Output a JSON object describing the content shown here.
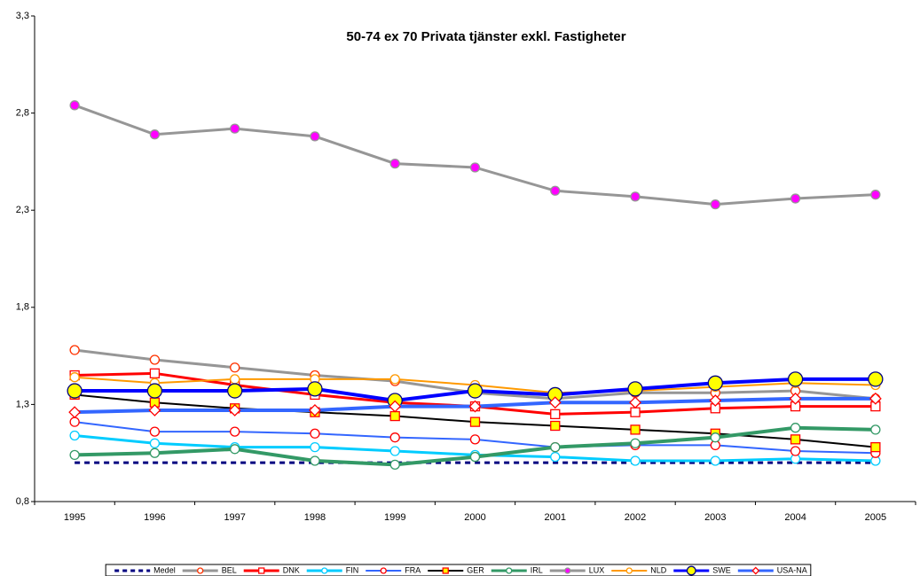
{
  "chart_data": {
    "type": "line",
    "title": "50-74 ex 70 Privata tjänster exkl. Fastigheter",
    "categories": [
      "1995",
      "1996",
      "1997",
      "1998",
      "1999",
      "2000",
      "2001",
      "2002",
      "2003",
      "2004",
      "2005"
    ],
    "ylim": [
      0.8,
      3.3
    ],
    "yticks": [
      {
        "value": 0.8,
        "label": "0,8"
      },
      {
        "value": 1.3,
        "label": "1,3"
      },
      {
        "value": 1.8,
        "label": "1,8"
      },
      {
        "value": 2.3,
        "label": "2,3"
      },
      {
        "value": 2.8,
        "label": "2,8"
      },
      {
        "value": 3.3,
        "label": "3,3"
      }
    ],
    "legend": "bottom",
    "series": [
      {
        "name": "Medel",
        "color": "#000080",
        "marker": "none",
        "dash": true,
        "line_width": 3,
        "values": [
          1.0,
          1.0,
          1.0,
          1.0,
          1.0,
          1.0,
          1.0,
          1.0,
          1.0,
          1.0,
          1.0
        ]
      },
      {
        "name": "BEL",
        "color": "#969696",
        "marker": "circle",
        "marker_color": "#ff3300",
        "marker_fill": "#ffffff",
        "line_width": 3,
        "values": [
          1.58,
          1.53,
          1.49,
          1.45,
          1.42,
          1.36,
          1.33,
          1.36,
          1.36,
          1.37,
          1.33
        ]
      },
      {
        "name": "DNK",
        "color": "#ff0000",
        "marker": "square",
        "marker_color": "#ff0000",
        "marker_fill": "#ffffff",
        "line_width": 3,
        "values": [
          1.45,
          1.46,
          1.4,
          1.35,
          1.31,
          1.29,
          1.25,
          1.26,
          1.28,
          1.29,
          1.29
        ]
      },
      {
        "name": "FIN",
        "color": "#00ccff",
        "marker": "circle",
        "marker_color": "#00ccff",
        "marker_fill": "#ffffff",
        "line_width": 3,
        "values": [
          1.14,
          1.1,
          1.08,
          1.08,
          1.06,
          1.04,
          1.03,
          1.01,
          1.01,
          1.02,
          1.01
        ]
      },
      {
        "name": "FRA",
        "color": "#3366ff",
        "marker": "circle",
        "marker_color": "#ff0000",
        "marker_fill": "#ffffff",
        "line_width": 2,
        "values": [
          1.21,
          1.16,
          1.16,
          1.15,
          1.13,
          1.12,
          1.08,
          1.09,
          1.09,
          1.06,
          1.05
        ]
      },
      {
        "name": "GER",
        "color": "#000000",
        "marker": "square",
        "marker_color": "#ff0000",
        "marker_fill": "#ffff00",
        "line_width": 2,
        "values": [
          1.35,
          1.31,
          1.28,
          1.26,
          1.24,
          1.21,
          1.19,
          1.17,
          1.15,
          1.12,
          1.08
        ]
      },
      {
        "name": "IRL",
        "color": "#339966",
        "marker": "circle",
        "marker_color": "#339966",
        "marker_fill": "#ffffff",
        "line_width": 4,
        "values": [
          1.04,
          1.05,
          1.07,
          1.01,
          0.99,
          1.03,
          1.08,
          1.1,
          1.13,
          1.18,
          1.17
        ]
      },
      {
        "name": "LUX",
        "color": "#969696",
        "marker": "circle",
        "marker_color": "#969696",
        "marker_fill": "#ff00ff",
        "line_width": 3,
        "values": [
          2.84,
          2.69,
          2.72,
          2.68,
          2.54,
          2.52,
          2.4,
          2.37,
          2.33,
          2.36,
          2.38
        ]
      },
      {
        "name": "NLD",
        "color": "#ff9900",
        "marker": "circle",
        "marker_color": "#ff9900",
        "marker_fill": "#ffffff",
        "line_width": 2,
        "values": [
          1.44,
          1.41,
          1.43,
          1.43,
          1.43,
          1.4,
          1.36,
          1.37,
          1.39,
          1.41,
          1.4
        ]
      },
      {
        "name": "SWE",
        "color": "#0000ff",
        "marker": "bigcircle",
        "marker_color": "#000080",
        "marker_fill": "#ffff00",
        "line_width": 4,
        "values": [
          1.37,
          1.37,
          1.37,
          1.38,
          1.32,
          1.37,
          1.35,
          1.38,
          1.41,
          1.43,
          1.43
        ]
      },
      {
        "name": "USA-NA",
        "color": "#3366ff",
        "marker": "diamond",
        "marker_color": "#ff0000",
        "marker_fill": "#ffffff",
        "line_width": 4,
        "values": [
          1.26,
          1.27,
          1.27,
          1.27,
          1.29,
          1.29,
          1.31,
          1.31,
          1.32,
          1.33,
          1.33
        ]
      }
    ]
  }
}
